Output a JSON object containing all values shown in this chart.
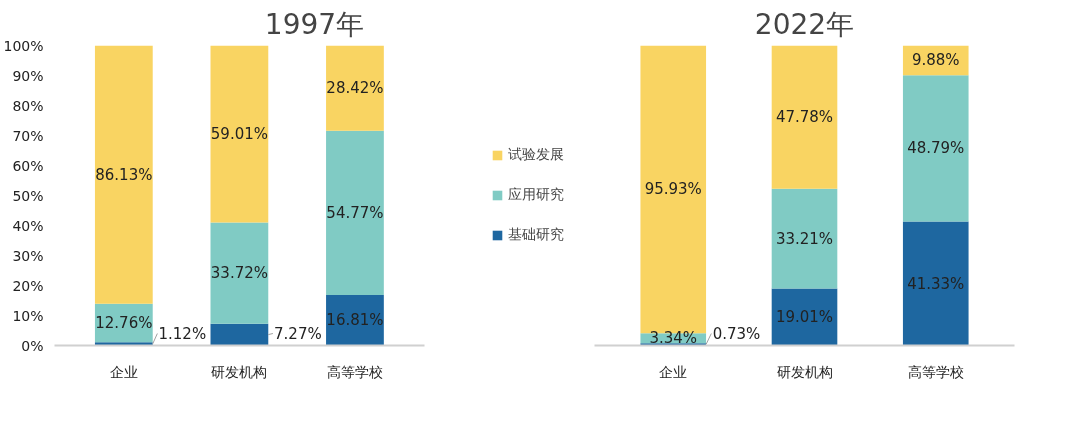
{
  "chart_data": [
    {
      "type": "bar",
      "title": "1997年",
      "stacked": true,
      "categories": [
        "企业",
        "研发机构",
        "高等学校"
      ],
      "series": [
        {
          "name": "基础研究",
          "color": "#1e67a0",
          "values": [
            1.12,
            7.27,
            16.81
          ],
          "value_labels": [
            "1.12%",
            "7.27%",
            "16.81%"
          ]
        },
        {
          "name": "应用研究",
          "color": "#80cbc4",
          "values": [
            12.76,
            33.72,
            54.77
          ],
          "value_labels": [
            "12.76%",
            "33.72%",
            "54.77%"
          ]
        },
        {
          "name": "试验发展",
          "color": "#f9d462",
          "values": [
            86.13,
            59.01,
            28.42
          ],
          "value_labels": [
            "86.13%",
            "59.01%",
            "28.42%"
          ]
        }
      ],
      "ylim": [
        0,
        100
      ],
      "yticks": [
        {
          "value": 0,
          "label": "0%"
        },
        {
          "value": 10,
          "label": "10%"
        },
        {
          "value": 20,
          "label": "20%"
        },
        {
          "value": 30,
          "label": "30%"
        },
        {
          "value": 40,
          "label": "40%"
        },
        {
          "value": 50,
          "label": "50%"
        },
        {
          "value": 60,
          "label": "60%"
        },
        {
          "value": 70,
          "label": "70%"
        },
        {
          "value": 80,
          "label": "80%"
        },
        {
          "value": 90,
          "label": "90%"
        },
        {
          "value": 100,
          "label": "100%"
        }
      ],
      "legend": "right"
    },
    {
      "type": "bar",
      "title": "2022年",
      "stacked": true,
      "categories": [
        "企业",
        "研发机构",
        "高等学校"
      ],
      "series": [
        {
          "color": "#1e67a0",
          "values": [
            0.73,
            19.01,
            41.33
          ],
          "value_labels": [
            "0.73%",
            "19.01%",
            "41.33%"
          ]
        },
        {
          "color": "#80cbc4",
          "values": [
            3.34,
            33.21,
            48.79
          ],
          "value_labels": [
            "3.34%",
            "33.21%",
            "48.79%"
          ]
        },
        {
          "color": "#f9d462",
          "values": [
            95.93,
            47.78,
            9.88
          ],
          "value_labels": [
            "95.93%",
            "47.78%",
            "9.88%"
          ]
        }
      ],
      "ylim": [
        0,
        100
      ],
      "tick_labels": "x"
    }
  ]
}
